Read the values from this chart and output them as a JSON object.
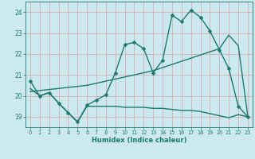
{
  "xlabel": "Humidex (Indice chaleur)",
  "xlim": [
    -0.5,
    23.5
  ],
  "ylim": [
    18.5,
    24.5
  ],
  "yticks": [
    19,
    20,
    21,
    22,
    23,
    24
  ],
  "xticks": [
    0,
    1,
    2,
    3,
    4,
    5,
    6,
    7,
    8,
    9,
    10,
    11,
    12,
    13,
    14,
    15,
    16,
    17,
    18,
    19,
    20,
    21,
    22,
    23
  ],
  "background_color": "#cce9ef",
  "grid_color": "#b0d4dc",
  "line_color": "#1a7a6e",
  "series": [
    {
      "x": [
        0,
        1,
        2,
        3,
        4,
        5,
        6,
        7,
        8,
        9,
        10,
        11,
        12,
        13,
        14,
        15,
        16,
        17,
        18,
        19,
        20,
        21,
        22,
        23
      ],
      "y": [
        20.7,
        20.0,
        20.15,
        19.65,
        19.2,
        18.75,
        19.55,
        19.8,
        20.05,
        21.1,
        22.45,
        22.55,
        22.25,
        21.1,
        21.7,
        23.85,
        23.55,
        24.1,
        23.75,
        23.1,
        22.2,
        21.3,
        19.5,
        19.0
      ],
      "marker": "D",
      "markersize": 2.5,
      "linewidth": 1.0
    },
    {
      "x": [
        0,
        1,
        2,
        3,
        4,
        5,
        6,
        7,
        8,
        9,
        10,
        11,
        12,
        13,
        14,
        15,
        16,
        17,
        18,
        19,
        20,
        21,
        22,
        23
      ],
      "y": [
        20.2,
        20.25,
        20.3,
        20.35,
        20.4,
        20.45,
        20.5,
        20.6,
        20.7,
        20.8,
        20.9,
        21.0,
        21.1,
        21.2,
        21.35,
        21.5,
        21.65,
        21.8,
        21.95,
        22.1,
        22.25,
        22.9,
        22.4,
        19.05
      ],
      "marker": null,
      "markersize": 0,
      "linewidth": 1.0
    },
    {
      "x": [
        0,
        1,
        2,
        3,
        4,
        5,
        6,
        7,
        8,
        9,
        10,
        11,
        12,
        13,
        14,
        15,
        16,
        17,
        18,
        19,
        20,
        21,
        22,
        23
      ],
      "y": [
        20.35,
        20.0,
        20.15,
        19.65,
        19.2,
        18.75,
        19.5,
        19.5,
        19.5,
        19.5,
        19.45,
        19.45,
        19.45,
        19.4,
        19.4,
        19.35,
        19.3,
        19.3,
        19.25,
        19.15,
        19.05,
        18.95,
        19.1,
        19.0
      ],
      "marker": null,
      "markersize": 0,
      "linewidth": 1.0
    }
  ]
}
